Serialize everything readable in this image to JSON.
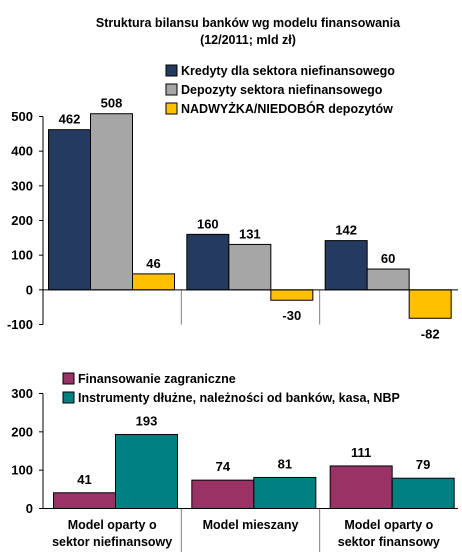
{
  "title_line1": "Struktura bilansu banków wg modelu finansowania",
  "title_line2": "(12/2011; mld zł)",
  "chart_data": [
    {
      "type": "bar",
      "categories": [
        "Model oparty o sektor niefinansowy",
        "Model mieszany",
        "Model oparty o sektor finansowy"
      ],
      "series": [
        {
          "name": "Kredyty dla sektora niefinansowego",
          "color": "#243a5e",
          "values": [
            462,
            160,
            142
          ]
        },
        {
          "name": "Depozyty sektora niefinansowego",
          "color": "#a6a6a6",
          "values": [
            508,
            131,
            60
          ]
        },
        {
          "name": "NADWYŻKA/NIEDOBÓR depozytów",
          "color": "#ffc000",
          "values": [
            46,
            -30,
            -82
          ]
        }
      ],
      "ylim": [
        -100,
        500
      ],
      "yticks": [
        "-100",
        "0",
        "100",
        "200",
        "300",
        "400",
        "500"
      ],
      "legend_position": "top-right"
    },
    {
      "type": "bar",
      "categories": [
        "Model oparty o sektor niefinansowy",
        "Model mieszany",
        "Model oparty o sektor finansowy"
      ],
      "category_lines": [
        [
          "Model oparty o",
          "sektor niefinansowy"
        ],
        [
          "Model mieszany"
        ],
        [
          "Model oparty o",
          "sektor finansowy"
        ]
      ],
      "series": [
        {
          "name": "Finansowanie zagraniczne",
          "color": "#993366",
          "values": [
            41,
            74,
            111
          ]
        },
        {
          "name": "Instrumenty dłużne, należności od banków, kasa, NBP",
          "color": "#008080",
          "values": [
            193,
            81,
            79
          ]
        }
      ],
      "ylim": [
        0,
        300
      ],
      "yticks": [
        "0",
        "100",
        "200",
        "300"
      ],
      "legend_position": "top"
    }
  ]
}
